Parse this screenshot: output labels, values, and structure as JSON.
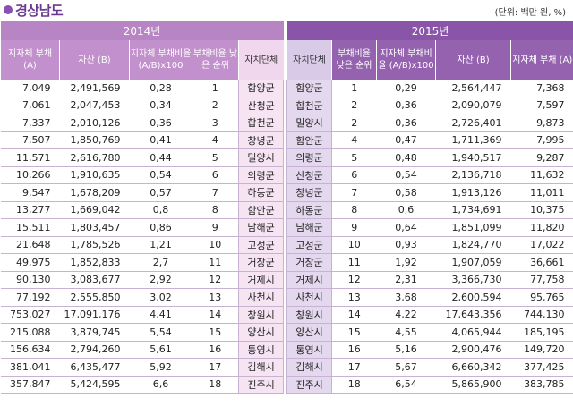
{
  "title": "경상남도",
  "unit": "(단위: 백만 원, %)",
  "year2014": "2014년",
  "year2015": "2015년",
  "headers2014": [
    "지자체 부채 (A)",
    "자산 (B)",
    "지자체 부채비율 (A/B)x100",
    "부채비율 낮은 순위",
    "자치단체"
  ],
  "headers2015": [
    "자치단체",
    "부채비율 낮은 순위",
    "지자체 부채비율 (A/B)x100",
    "자산 (B)",
    "지자체 부채 (A)"
  ],
  "rows2014": [
    [
      "7,049",
      "2,491,569",
      "0,28",
      "1",
      "함양군"
    ],
    [
      "7,061",
      "2,047,453",
      "0,34",
      "2",
      "산청군"
    ],
    [
      "7,337",
      "2,010,126",
      "0,36",
      "3",
      "합천군"
    ],
    [
      "7,507",
      "1,850,769",
      "0,41",
      "4",
      "창녕군"
    ],
    [
      "11,571",
      "2,616,780",
      "0,44",
      "5",
      "밀양시"
    ],
    [
      "10,266",
      "1,910,635",
      "0,54",
      "6",
      "의령군"
    ],
    [
      "9,547",
      "1,678,209",
      "0,57",
      "7",
      "하동군"
    ],
    [
      "13,277",
      "1,669,042",
      "0,8",
      "8",
      "함안군"
    ],
    [
      "15,511",
      "1,803,457",
      "0,86",
      "9",
      "남해군"
    ],
    [
      "21,648",
      "1,785,526",
      "1,21",
      "10",
      "고성군"
    ],
    [
      "49,975",
      "1,852,833",
      "2,7",
      "11",
      "거창군"
    ],
    [
      "90,130",
      "3,083,677",
      "2,92",
      "12",
      "거제시"
    ],
    [
      "77,192",
      "2,555,850",
      "3,02",
      "13",
      "사천시"
    ],
    [
      "753,027",
      "17,091,176",
      "4,41",
      "14",
      "창원시"
    ],
    [
      "215,088",
      "3,879,745",
      "5,54",
      "15",
      "양산시"
    ],
    [
      "156,634",
      "2,794,260",
      "5,61",
      "16",
      "통영시"
    ],
    [
      "381,041",
      "6,435,477",
      "5,92",
      "17",
      "김해시"
    ],
    [
      "357,847",
      "5,424,595",
      "6,6",
      "18",
      "진주시"
    ]
  ],
  "rows2015": [
    [
      "함양군",
      "1",
      "0,29",
      "2,564,447",
      "7,368"
    ],
    [
      "합천군",
      "2",
      "0,36",
      "2,090,079",
      "7,597"
    ],
    [
      "밀양시",
      "2",
      "0,36",
      "2,726,401",
      "9,873"
    ],
    [
      "함안군",
      "4",
      "0,47",
      "1,711,369",
      "7,995"
    ],
    [
      "의령군",
      "5",
      "0,48",
      "1,940,517",
      "9,287"
    ],
    [
      "산청군",
      "6",
      "0,54",
      "2,136,718",
      "11,632"
    ],
    [
      "창녕군",
      "7",
      "0,58",
      "1,913,126",
      "11,011"
    ],
    [
      "하동군",
      "8",
      "0,6",
      "1,734,691",
      "10,375"
    ],
    [
      "남해군",
      "9",
      "0,64",
      "1,851,099",
      "11,820"
    ],
    [
      "고성군",
      "10",
      "0,93",
      "1,824,770",
      "17,022"
    ],
    [
      "거창군",
      "11",
      "1,92",
      "1,907,059",
      "36,661"
    ],
    [
      "거제시",
      "12",
      "2,31",
      "3,366,730",
      "77,758"
    ],
    [
      "사천시",
      "13",
      "3,68",
      "2,600,594",
      "95,765"
    ],
    [
      "창원시",
      "14",
      "4,22",
      "17,643,356",
      "744,130"
    ],
    [
      "양산시",
      "15",
      "4,55",
      "4,065,944",
      "185,195"
    ],
    [
      "통영시",
      "16",
      "5,16",
      "2,900,476",
      "149,720"
    ],
    [
      "김해시",
      "17",
      "5,67",
      "6,660,342",
      "377,425"
    ],
    [
      "진주시",
      "18",
      "6,54",
      "5,865,900",
      "383,785"
    ]
  ]
}
